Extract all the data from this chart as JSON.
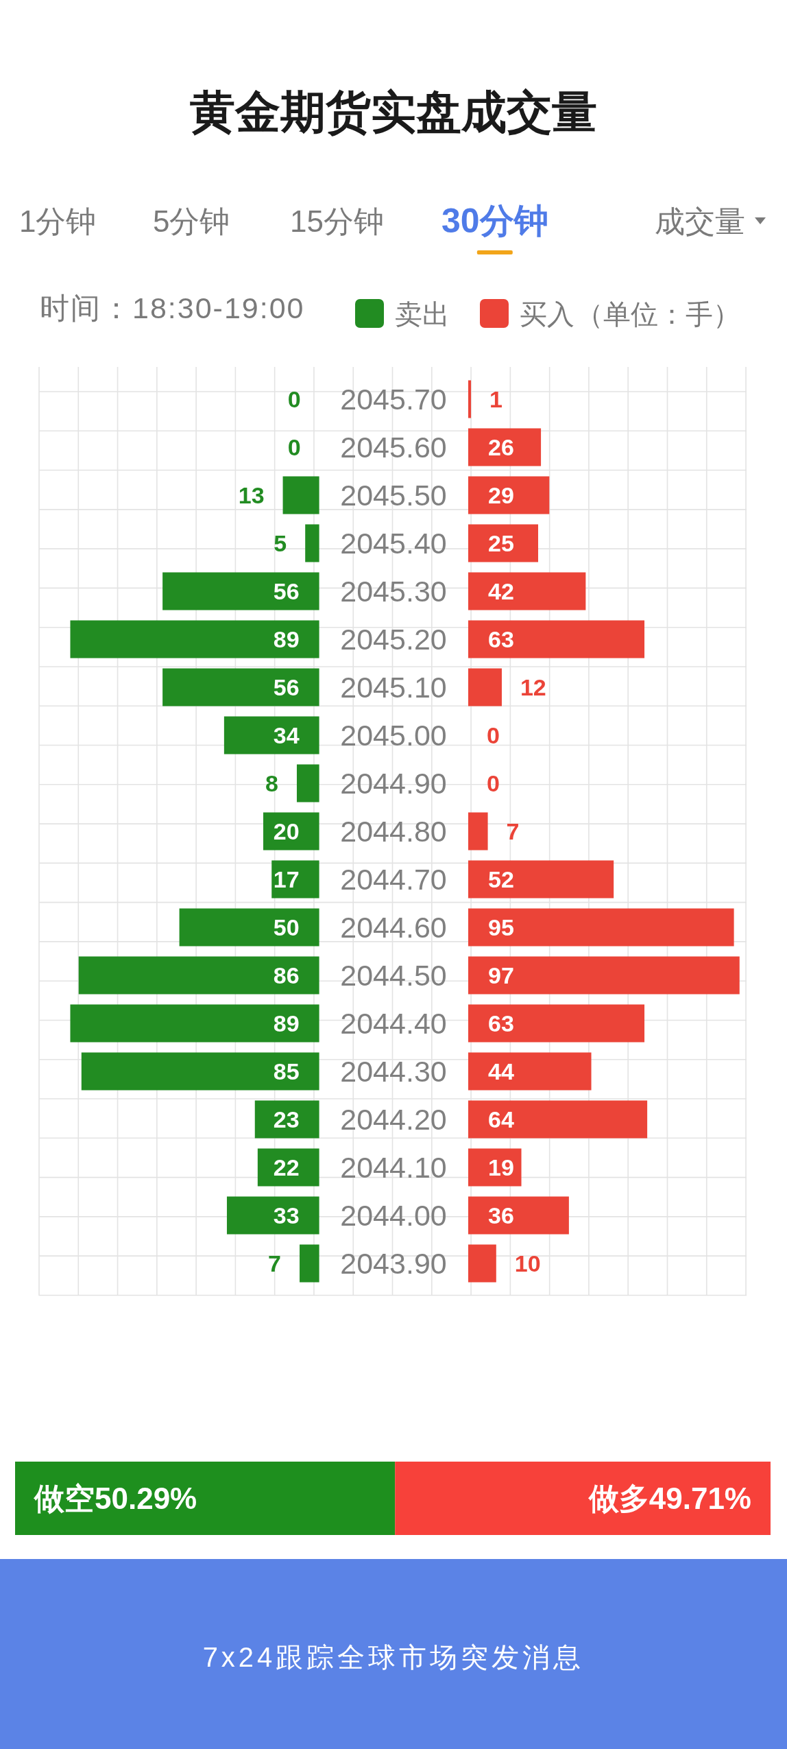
{
  "chart_data": [
    {
      "type": "bar",
      "orientation": "horizontal",
      "title": "黄金期货实盘成交量",
      "subtitle": "时间：18:30-19:00",
      "annotations": [
        "1分钟",
        "5分钟",
        "15分钟",
        "30分钟",
        "成交量"
      ],
      "categories": [
        "2045.70",
        "2045.60",
        "2045.50",
        "2045.40",
        "2045.30",
        "2045.20",
        "2045.10",
        "2045.00",
        "2044.90",
        "2044.80",
        "2044.70",
        "2044.60",
        "2044.50",
        "2044.40",
        "2044.30",
        "2044.20",
        "2044.10",
        "2044.00",
        "2043.90"
      ],
      "series": [
        {
          "name": "卖出",
          "color": "#228c22",
          "values": [
            0,
            0,
            13,
            5,
            56,
            89,
            56,
            34,
            8,
            20,
            17,
            50,
            86,
            89,
            85,
            23,
            22,
            33,
            7
          ]
        }
      ],
      "xlim": [
        100,
        0
      ],
      "data_labels": true,
      "grid": true,
      "legend": "top",
      "tick_labels": "y"
    },
    {
      "type": "bar",
      "orientation": "horizontal",
      "annotations": [
        "（单位：手）"
      ],
      "categories": [
        "2045.70",
        "2045.60",
        "2045.50",
        "2045.40",
        "2045.30",
        "2045.20",
        "2045.10",
        "2045.00",
        "2044.90",
        "2044.80",
        "2044.70",
        "2044.60",
        "2044.50",
        "2044.40",
        "2044.30",
        "2044.20",
        "2044.10",
        "2044.00",
        "2043.90"
      ],
      "series": [
        {
          "name": "买入",
          "color": "#eb4438",
          "values": [
            1,
            26,
            29,
            25,
            42,
            63,
            12,
            0,
            0,
            7,
            52,
            95,
            97,
            63,
            44,
            64,
            19,
            36,
            10
          ]
        }
      ],
      "xlim": [
        0,
        100
      ],
      "data_labels": true,
      "grid": true,
      "legend": "top",
      "tick_labels": false
    },
    {
      "type": "bar",
      "orientation": "horizontal",
      "stacked": true,
      "categories": [
        null
      ],
      "series": [
        {
          "color": "#1e8f1e",
          "values": [
            50.29
          ],
          "value_labels": [
            "做空50.29%"
          ]
        },
        {
          "color": "#f7413a",
          "values": [
            49.71
          ],
          "value_labels": [
            "做多49.71%"
          ]
        }
      ],
      "xlim": [
        0,
        100
      ],
      "tick_labels": false,
      "annotations": [
        "7x24跟踪全球市场突发消息"
      ]
    }
  ]
}
